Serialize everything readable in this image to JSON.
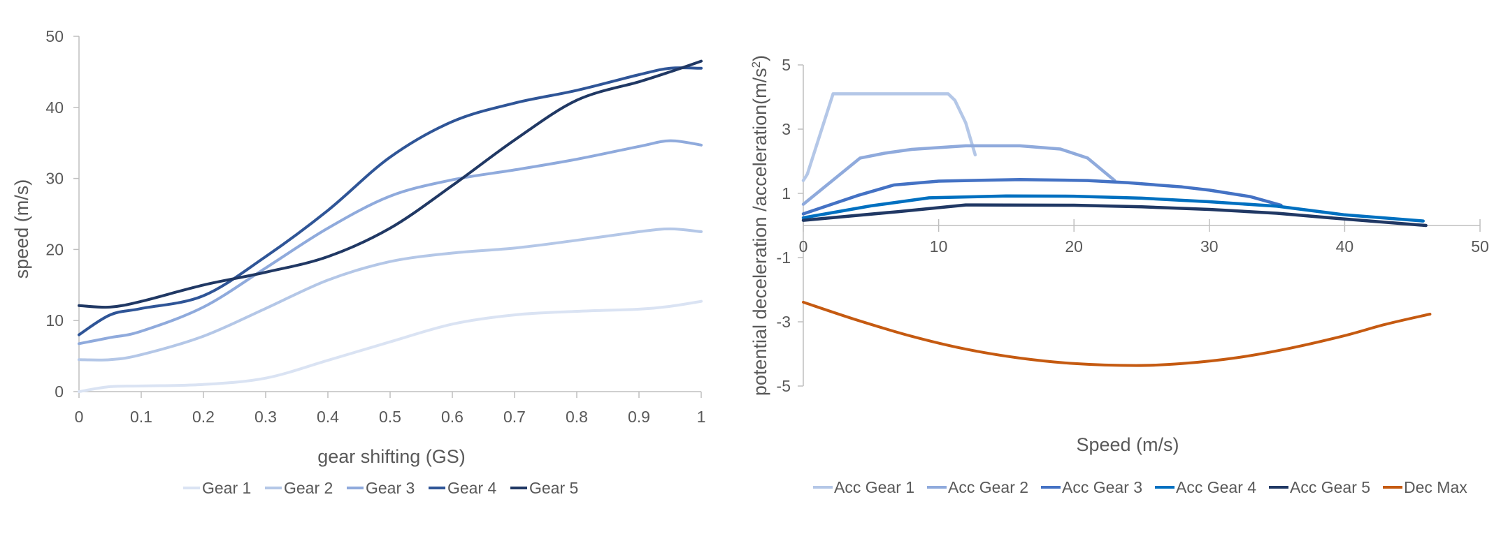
{
  "chart_data": [
    {
      "type": "line",
      "title": "",
      "xlabel": "gear shifting (GS)",
      "ylabel": "speed (m/s)",
      "xlim": [
        0,
        1
      ],
      "ylim": [
        0,
        50
      ],
      "xticks": [
        "0",
        "0.1",
        "0.2",
        "0.3",
        "0.4",
        "0.5",
        "0.6",
        "0.7",
        "0.8",
        "0.9",
        "1"
      ],
      "yticks": [
        "0",
        "10",
        "20",
        "30",
        "40",
        "50"
      ],
      "grid": false,
      "legend": "bottom",
      "smooth": true,
      "x": [
        0,
        0.05,
        0.1,
        0.2,
        0.3,
        0.4,
        0.5,
        0.6,
        0.7,
        0.8,
        0.9,
        0.95,
        1
      ],
      "series": [
        {
          "name": "Gear 1",
          "color": "#dae3f3",
          "values": [
            0,
            0.7,
            0.8,
            1.0,
            1.9,
            4.4,
            7.0,
            9.5,
            10.8,
            11.3,
            11.6,
            12.0,
            12.7
          ]
        },
        {
          "name": "Gear 2",
          "color": "#b4c7e7",
          "values": [
            4.5,
            4.5,
            5.2,
            7.8,
            11.7,
            15.7,
            18.3,
            19.5,
            20.2,
            21.3,
            22.5,
            22.9,
            22.5
          ]
        },
        {
          "name": "Gear 3",
          "color": "#8faadc",
          "values": [
            6.75,
            7.6,
            8.5,
            11.9,
            17.4,
            23.0,
            27.5,
            29.8,
            31.2,
            32.7,
            34.5,
            35.3,
            34.7
          ]
        },
        {
          "name": "Gear 4",
          "color": "#2f5597",
          "values": [
            8.0,
            10.8,
            11.7,
            13.5,
            19.0,
            25.5,
            33.0,
            38.0,
            40.6,
            42.4,
            44.6,
            45.5,
            45.5
          ]
        },
        {
          "name": "Gear 5",
          "color": "#203864",
          "values": [
            12.1,
            11.9,
            12.7,
            15.0,
            16.8,
            19.0,
            23.0,
            29.0,
            35.4,
            41.0,
            43.6,
            45.0,
            46.5
          ]
        }
      ]
    },
    {
      "type": "line",
      "title": "",
      "xlabel": "Speed (m/s)",
      "ylabel": "potential deceleration  /acceleration(m/s²)",
      "ylabel_main": "potential deceleration  /acceleration(m/s",
      "ylabel_sup": "2",
      "ylabel_tail": ")",
      "xlim": [
        0,
        50
      ],
      "ylim": [
        -5,
        5
      ],
      "xticks": [
        "0",
        "10",
        "20",
        "30",
        "40",
        "50"
      ],
      "yticks": [
        "-5",
        "-3",
        "-1",
        "1",
        "3",
        "5"
      ],
      "grid": false,
      "legend": "bottom",
      "series": [
        {
          "name": "Acc Gear 1",
          "color": "#b4c7e7",
          "points": [
            [
              0,
              1.4
            ],
            [
              0.3,
              1.6
            ],
            [
              2.2,
              4.1
            ],
            [
              10.7,
              4.1
            ],
            [
              11.2,
              3.9
            ],
            [
              12.0,
              3.2
            ],
            [
              12.7,
              2.2
            ]
          ]
        },
        {
          "name": "Acc Gear 2",
          "color": "#8faadc",
          "points": [
            [
              0,
              0.66
            ],
            [
              4.2,
              2.1
            ],
            [
              6,
              2.25
            ],
            [
              8,
              2.37
            ],
            [
              12,
              2.48
            ],
            [
              16,
              2.48
            ],
            [
              19,
              2.38
            ],
            [
              21,
              2.1
            ],
            [
              23,
              1.4
            ]
          ]
        },
        {
          "name": "Acc Gear 3",
          "color": "#4472c4",
          "points": [
            [
              0,
              0.36
            ],
            [
              4,
              0.93
            ],
            [
              6.7,
              1.26
            ],
            [
              10,
              1.38
            ],
            [
              16,
              1.43
            ],
            [
              21,
              1.4
            ],
            [
              24,
              1.33
            ],
            [
              28,
              1.2
            ],
            [
              30,
              1.1
            ],
            [
              33,
              0.9
            ],
            [
              35.3,
              0.63
            ]
          ]
        },
        {
          "name": "Acc Gear 4",
          "color": "#0070c0",
          "points": [
            [
              0,
              0.24
            ],
            [
              5,
              0.61
            ],
            [
              9.3,
              0.86
            ],
            [
              15,
              0.92
            ],
            [
              20,
              0.91
            ],
            [
              25,
              0.85
            ],
            [
              30,
              0.74
            ],
            [
              35,
              0.6
            ],
            [
              40,
              0.33
            ],
            [
              45.8,
              0.14
            ]
          ]
        },
        {
          "name": "Acc Gear 5",
          "color": "#203864",
          "points": [
            [
              0,
              0.16
            ],
            [
              7,
              0.43
            ],
            [
              12,
              0.64
            ],
            [
              20,
              0.63
            ],
            [
              25,
              0.58
            ],
            [
              30,
              0.5
            ],
            [
              35,
              0.38
            ],
            [
              40,
              0.2
            ],
            [
              46,
              0.0
            ]
          ]
        },
        {
          "name": "Dec Max",
          "color": "#c55a11",
          "points": [
            [
              0,
              -2.39
            ],
            [
              4,
              -2.95
            ],
            [
              8,
              -3.45
            ],
            [
              12,
              -3.85
            ],
            [
              16,
              -4.13
            ],
            [
              20,
              -4.3
            ],
            [
              24.6,
              -4.36
            ],
            [
              28,
              -4.3
            ],
            [
              32,
              -4.12
            ],
            [
              36,
              -3.82
            ],
            [
              40,
              -3.43
            ],
            [
              43,
              -3.08
            ],
            [
              46.3,
              -2.76
            ]
          ]
        }
      ]
    }
  ]
}
